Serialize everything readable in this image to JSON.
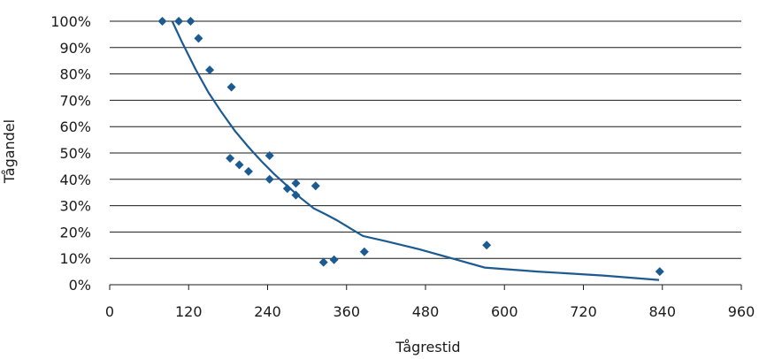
{
  "chart_data": {
    "type": "scatter",
    "title": "",
    "xlabel": "Tågrestid",
    "ylabel": "Tågandel",
    "xlim": [
      0,
      960
    ],
    "ylim": [
      0,
      100
    ],
    "x_ticks": [
      0,
      120,
      240,
      360,
      480,
      600,
      720,
      840,
      960
    ],
    "y_ticks": [
      0,
      10,
      20,
      30,
      40,
      50,
      60,
      70,
      80,
      90,
      100
    ],
    "y_tick_suffix": "%",
    "grid": "horizontal",
    "legend": "none",
    "colors": {
      "series": "#1c5a92",
      "axis": "#1a1a1a"
    },
    "series": [
      {
        "kind": "points",
        "marker": "diamond",
        "points": [
          {
            "x": 80,
            "y": 100
          },
          {
            "x": 105,
            "y": 100
          },
          {
            "x": 123,
            "y": 100
          },
          {
            "x": 135,
            "y": 93.5
          },
          {
            "x": 152,
            "y": 81.5
          },
          {
            "x": 185,
            "y": 75
          },
          {
            "x": 183,
            "y": 48
          },
          {
            "x": 197,
            "y": 45.5
          },
          {
            "x": 211,
            "y": 43
          },
          {
            "x": 243,
            "y": 49
          },
          {
            "x": 243,
            "y": 40
          },
          {
            "x": 270,
            "y": 36.5
          },
          {
            "x": 283,
            "y": 38.5
          },
          {
            "x": 283,
            "y": 34
          },
          {
            "x": 313,
            "y": 37.5
          },
          {
            "x": 325,
            "y": 8.5
          },
          {
            "x": 341,
            "y": 9.5
          },
          {
            "x": 387,
            "y": 12.5
          },
          {
            "x": 573,
            "y": 15
          },
          {
            "x": 836,
            "y": 5
          }
        ]
      },
      {
        "kind": "trendline",
        "points": [
          {
            "x": 95,
            "y": 100
          },
          {
            "x": 110,
            "y": 92
          },
          {
            "x": 130,
            "y": 82
          },
          {
            "x": 150,
            "y": 73
          },
          {
            "x": 170,
            "y": 65.5
          },
          {
            "x": 190,
            "y": 58.5
          },
          {
            "x": 210,
            "y": 52.5
          },
          {
            "x": 230,
            "y": 47
          },
          {
            "x": 250,
            "y": 42
          },
          {
            "x": 270,
            "y": 37.5
          },
          {
            "x": 290,
            "y": 33
          },
          {
            "x": 310,
            "y": 29
          },
          {
            "x": 330,
            "y": 26.5
          },
          {
            "x": 345,
            "y": 24.5
          },
          {
            "x": 365,
            "y": 21.5
          },
          {
            "x": 385,
            "y": 18.5
          },
          {
            "x": 420,
            "y": 16.5
          },
          {
            "x": 470,
            "y": 13.5
          },
          {
            "x": 520,
            "y": 10
          },
          {
            "x": 570,
            "y": 6.5
          },
          {
            "x": 650,
            "y": 5
          },
          {
            "x": 750,
            "y": 3.5
          },
          {
            "x": 835,
            "y": 1.8
          }
        ]
      }
    ]
  }
}
